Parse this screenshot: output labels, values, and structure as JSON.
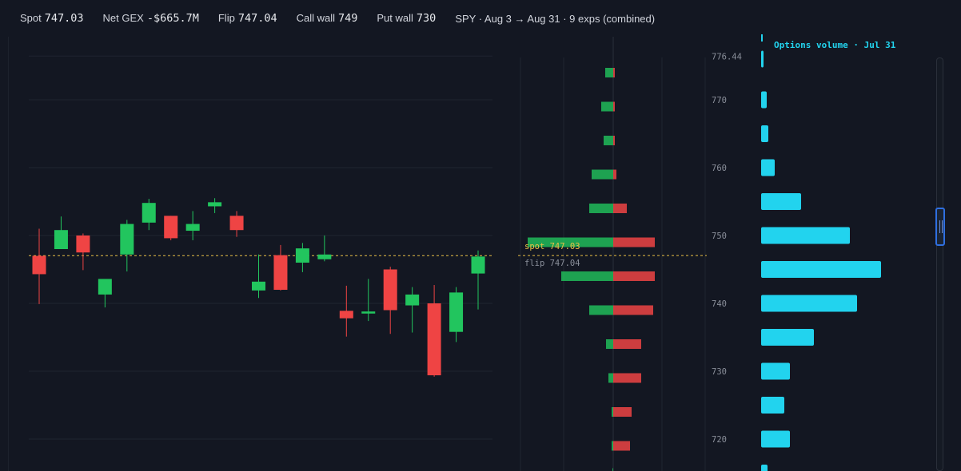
{
  "header": {
    "spot_label": "Spot",
    "spot_value": "747.03",
    "netgex_label": "Net GEX",
    "netgex_value": "-$665.7M",
    "flip_label": "Flip",
    "flip_value": "747.04",
    "callwall_label": "Call wall",
    "callwall_value": "749",
    "putwall_label": "Put wall",
    "putwall_value": "730",
    "range_text": "SPY · Aug 3 → Aug 31 · 9 exps (combined)"
  },
  "colors": {
    "background": "#131722",
    "up": "#22c55e",
    "down": "#ef4444",
    "spot_line": "#e9c046",
    "volume_bar": "#22d3ee",
    "volume_title": "#22d3ee",
    "grid": "#1f2430"
  },
  "chart_data": [
    {
      "type": "candlestick",
      "spot_line": 747.03,
      "ylim": [
        712,
        778
      ],
      "candles": [
        {
          "o": 747.0,
          "h": 751.0,
          "l": 739.9,
          "c": 744.3
        },
        {
          "o": 748.0,
          "h": 752.8,
          "l": 748.0,
          "c": 750.8
        },
        {
          "o": 750.0,
          "h": 750.3,
          "l": 744.9,
          "c": 747.5
        },
        {
          "o": 741.3,
          "h": 743.0,
          "l": 739.4,
          "c": 743.6
        },
        {
          "o": 747.2,
          "h": 752.3,
          "l": 744.7,
          "c": 751.7
        },
        {
          "o": 751.9,
          "h": 755.4,
          "l": 750.8,
          "c": 754.8
        },
        {
          "o": 752.9,
          "h": 752.9,
          "l": 749.3,
          "c": 749.6
        },
        {
          "o": 750.7,
          "h": 753.6,
          "l": 749.3,
          "c": 751.7
        },
        {
          "o": 754.3,
          "h": 755.5,
          "l": 753.3,
          "c": 754.9
        },
        {
          "o": 752.9,
          "h": 753.6,
          "l": 749.8,
          "c": 750.8
        },
        {
          "o": 741.9,
          "h": 747.2,
          "l": 740.8,
          "c": 743.2
        },
        {
          "o": 747.1,
          "h": 748.6,
          "l": 741.9,
          "c": 742.0
        },
        {
          "o": 746.0,
          "h": 748.9,
          "l": 744.6,
          "c": 748.1
        },
        {
          "o": 746.5,
          "h": 750.0,
          "l": 746.2,
          "c": 747.2
        },
        {
          "o": 738.9,
          "h": 742.6,
          "l": 735.1,
          "c": 737.8
        },
        {
          "o": 738.5,
          "h": 743.6,
          "l": 737.4,
          "c": 738.8
        },
        {
          "o": 745.0,
          "h": 745.4,
          "l": 735.5,
          "c": 739.0
        },
        {
          "o": 739.7,
          "h": 742.4,
          "l": 735.7,
          "c": 741.3
        },
        {
          "o": 740.0,
          "h": 742.7,
          "l": 729.2,
          "c": 729.4
        },
        {
          "o": 735.8,
          "h": 742.4,
          "l": 734.3,
          "c": 741.6
        },
        {
          "o": 744.4,
          "h": 747.8,
          "l": 739.1,
          "c": 746.9
        }
      ]
    },
    {
      "type": "bar",
      "orientation": "horizontal",
      "flip_line": 747.04,
      "spot_label": "spot 747.03",
      "flip_label": "flip 747.04",
      "series": [
        {
          "strike": 777,
          "call": 0,
          "put": 0
        },
        {
          "strike": 774,
          "call": 1.0,
          "put": 0.2
        },
        {
          "strike": 769,
          "call": 1.5,
          "put": 0.2
        },
        {
          "strike": 764,
          "call": 1.2,
          "put": 0.2
        },
        {
          "strike": 759,
          "call": 2.7,
          "put": 0.4
        },
        {
          "strike": 754,
          "call": 3.0,
          "put": 1.7
        },
        {
          "strike": 749,
          "call": 10.7,
          "put": 5.2
        },
        {
          "strike": 744,
          "call": 6.5,
          "put": 5.2
        },
        {
          "strike": 739,
          "call": 3.0,
          "put": 5.0
        },
        {
          "strike": 734,
          "call": 0.9,
          "put": 3.5
        },
        {
          "strike": 729,
          "call": 0.6,
          "put": 3.5
        },
        {
          "strike": 724,
          "call": 0.2,
          "put": 2.3
        },
        {
          "strike": 719,
          "call": 0.2,
          "put": 2.1
        },
        {
          "strike": 715,
          "call": 0.1,
          "put": 0
        }
      ]
    },
    {
      "type": "bar",
      "orientation": "horizontal",
      "title": "Options volume · Jul 31",
      "ylim": [
        712,
        778
      ],
      "y_ticks": [
        "776.44",
        "770",
        "760",
        "750",
        "740",
        "730",
        "720"
      ],
      "bars": [
        {
          "strike": 776,
          "value": 0.2
        },
        {
          "strike": 770,
          "value": 0.7
        },
        {
          "strike": 765,
          "value": 0.9
        },
        {
          "strike": 760,
          "value": 1.7
        },
        {
          "strike": 755,
          "value": 5.0
        },
        {
          "strike": 750,
          "value": 11.1
        },
        {
          "strike": 745,
          "value": 15.0
        },
        {
          "strike": 740,
          "value": 12.0
        },
        {
          "strike": 735,
          "value": 6.6
        },
        {
          "strike": 730,
          "value": 3.6
        },
        {
          "strike": 725,
          "value": 2.9
        },
        {
          "strike": 720,
          "value": 3.6
        },
        {
          "strike": 715,
          "value": 0.8
        }
      ]
    }
  ]
}
